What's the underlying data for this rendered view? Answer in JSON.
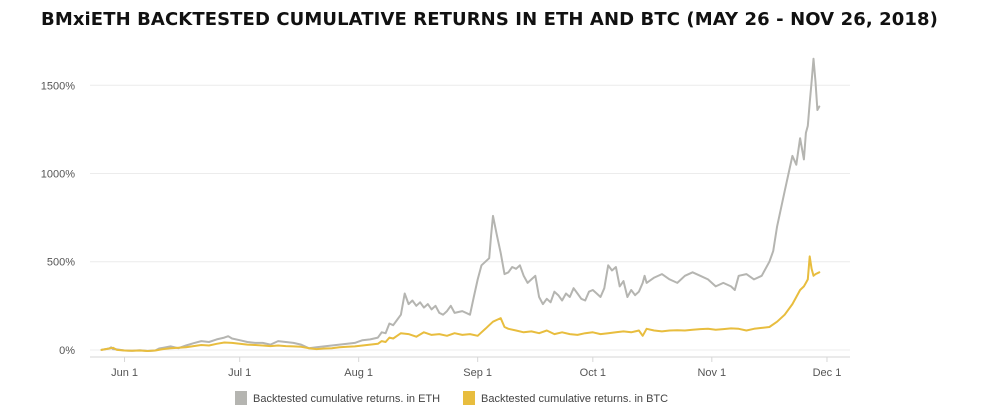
{
  "chart_data": {
    "type": "line",
    "title": "BMxiETH BACKTESTED CUMULATIVE RETURNS IN ETH AND BTC (MAY 26 - NOV 26, 2018)",
    "xlabel": "",
    "ylabel": "",
    "x_ticks": [
      {
        "day": 6,
        "label": "Jun 1"
      },
      {
        "day": 36,
        "label": "Jul 1"
      },
      {
        "day": 67,
        "label": "Aug 1"
      },
      {
        "day": 98,
        "label": "Sep 1"
      },
      {
        "day": 128,
        "label": "Oct 1"
      },
      {
        "day": 159,
        "label": "Nov 1"
      },
      {
        "day": 189,
        "label": "Dec 1"
      }
    ],
    "y_ticks": [
      {
        "value": 0,
        "label": "0%"
      },
      {
        "value": 500,
        "label": "500%"
      },
      {
        "value": 1000,
        "label": "1000%"
      },
      {
        "value": 1500,
        "label": "1500%"
      }
    ],
    "xlim_days": [
      -3,
      195
    ],
    "ylim": [
      -40,
      1700
    ],
    "x_unit_note": "days from May 26, 2018",
    "grid": true,
    "legend_position": "bottom-center",
    "series": [
      {
        "name": "Backtested cumulative returns. in ETH",
        "color": "#b5b5b1",
        "x": [
          0,
          2,
          2.5,
          3,
          4,
          6,
          8,
          10,
          12,
          14,
          15,
          16,
          18,
          20,
          22,
          24,
          26,
          28,
          30,
          32,
          33,
          34,
          36,
          38,
          40,
          42,
          44,
          46,
          48,
          50,
          52,
          54,
          56,
          58,
          60,
          62,
          64,
          66,
          68,
          70,
          72,
          73,
          74,
          75,
          76,
          77,
          78,
          79,
          80,
          81,
          82,
          83,
          84,
          85,
          86,
          87,
          88,
          89,
          90,
          91,
          92,
          94,
          96,
          97,
          98,
          99,
          100,
          101,
          101.5,
          102,
          103,
          104,
          105,
          106,
          107,
          108,
          109,
          110,
          111,
          112,
          113,
          114,
          115,
          116,
          117,
          118,
          119,
          120,
          121,
          122,
          123,
          124,
          125,
          126,
          127,
          128,
          129,
          130,
          131,
          132,
          133,
          134,
          135,
          136,
          137,
          138,
          139,
          140,
          141,
          141.5,
          142,
          144,
          146,
          148,
          150,
          152,
          154,
          156,
          158,
          160,
          162,
          164,
          165,
          166,
          168,
          170,
          172,
          174,
          175,
          176,
          178,
          180,
          181,
          182,
          183,
          183.5,
          184,
          184.5,
          185,
          185.5,
          186,
          186.5,
          187
        ],
        "y": [
          0,
          8,
          15,
          5,
          3,
          -3,
          -5,
          -2,
          -6,
          -3,
          8,
          12,
          20,
          10,
          25,
          38,
          50,
          45,
          60,
          70,
          78,
          65,
          55,
          45,
          40,
          40,
          30,
          50,
          45,
          40,
          30,
          10,
          15,
          20,
          25,
          30,
          35,
          40,
          55,
          60,
          70,
          100,
          95,
          150,
          140,
          170,
          200,
          320,
          260,
          280,
          250,
          270,
          240,
          260,
          230,
          250,
          210,
          200,
          220,
          250,
          210,
          220,
          200,
          300,
          400,
          480,
          500,
          520,
          650,
          760,
          650,
          550,
          430,
          440,
          470,
          460,
          480,
          420,
          380,
          400,
          420,
          300,
          260,
          290,
          270,
          330,
          310,
          280,
          320,
          300,
          350,
          320,
          290,
          280,
          330,
          340,
          320,
          300,
          350,
          480,
          450,
          470,
          360,
          390,
          300,
          340,
          310,
          330,
          380,
          420,
          380,
          410,
          430,
          400,
          380,
          420,
          440,
          420,
          400,
          360,
          380,
          360,
          340,
          420,
          430,
          400,
          420,
          500,
          560,
          700,
          900,
          1100,
          1050,
          1200,
          1080,
          1230,
          1270,
          1400,
          1520,
          1650,
          1520,
          1360,
          1380
        ]
      },
      {
        "name": "Backtested cumulative returns. in BTC",
        "color": "#e8bd3e",
        "x": [
          0,
          2,
          3,
          4,
          6,
          8,
          10,
          12,
          14,
          16,
          18,
          20,
          22,
          24,
          26,
          28,
          30,
          32,
          34,
          36,
          38,
          40,
          42,
          44,
          46,
          48,
          50,
          52,
          54,
          56,
          58,
          60,
          62,
          64,
          66,
          68,
          70,
          72,
          73,
          74,
          75,
          76,
          77,
          78,
          80,
          82,
          84,
          86,
          88,
          90,
          92,
          94,
          96,
          98,
          99,
          100,
          101,
          102,
          103,
          104,
          105,
          106,
          108,
          110,
          112,
          114,
          116,
          118,
          120,
          122,
          124,
          126,
          128,
          130,
          132,
          134,
          136,
          138,
          140,
          141,
          142,
          144,
          146,
          148,
          150,
          152,
          154,
          156,
          158,
          160,
          162,
          164,
          166,
          168,
          170,
          172,
          174,
          176,
          178,
          180,
          181,
          182,
          183,
          183.5,
          184,
          184.5,
          185,
          185.5,
          186,
          187
        ],
        "y": [
          0,
          8,
          12,
          0,
          -3,
          -5,
          -3,
          -6,
          -3,
          5,
          10,
          12,
          15,
          22,
          28,
          25,
          35,
          42,
          40,
          35,
          30,
          28,
          25,
          22,
          25,
          22,
          20,
          18,
          10,
          5,
          8,
          10,
          15,
          18,
          20,
          25,
          30,
          35,
          50,
          45,
          70,
          65,
          80,
          95,
          90,
          75,
          100,
          85,
          90,
          80,
          95,
          85,
          90,
          80,
          100,
          120,
          140,
          160,
          170,
          180,
          130,
          120,
          110,
          100,
          105,
          95,
          110,
          90,
          100,
          90,
          85,
          95,
          100,
          90,
          95,
          100,
          105,
          100,
          110,
          80,
          120,
          110,
          105,
          110,
          112,
          110,
          115,
          118,
          120,
          115,
          118,
          122,
          120,
          110,
          120,
          125,
          130,
          160,
          200,
          260,
          300,
          340,
          360,
          380,
          400,
          530,
          460,
          420,
          430,
          440
        ]
      }
    ]
  }
}
